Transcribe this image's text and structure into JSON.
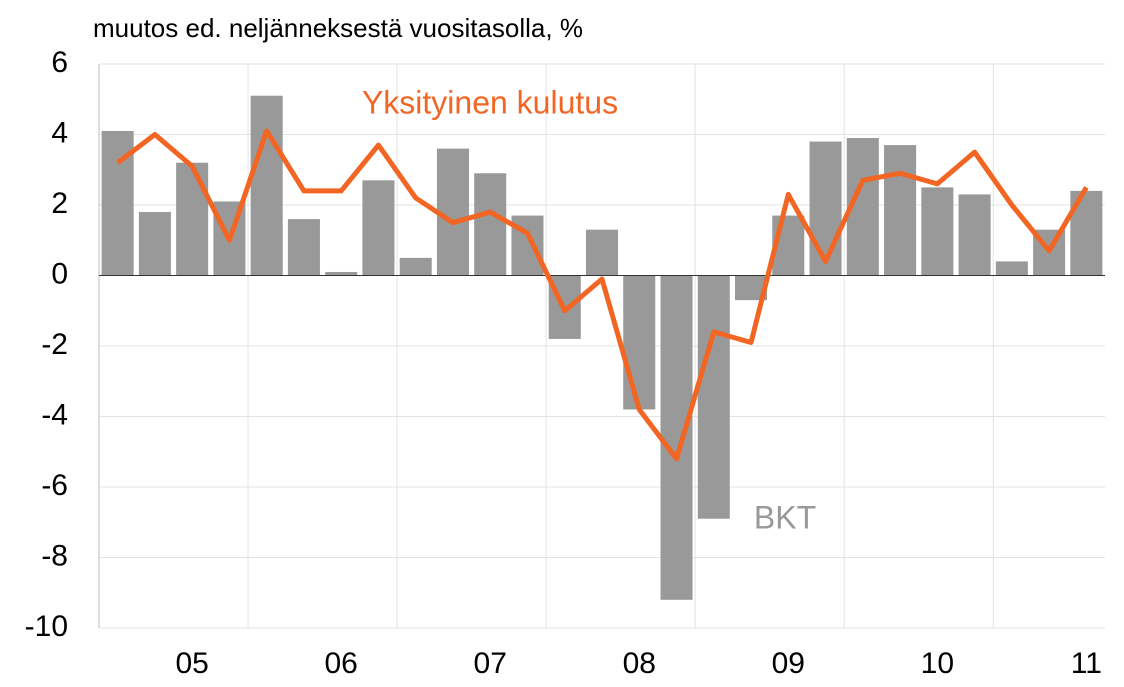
{
  "chart_data": {
    "type": "bar_line",
    "title": "muutos ed. neljänneksestä vuositasolla, %",
    "categories": [
      null,
      null,
      "05",
      null,
      null,
      null,
      "06",
      null,
      null,
      null,
      "07",
      null,
      null,
      null,
      "08",
      null,
      null,
      null,
      "09",
      null,
      null,
      null,
      "10",
      null,
      null,
      null,
      "11"
    ],
    "series": [
      {
        "name": "BKT",
        "type": "bar",
        "color": "#999999",
        "values": [
          4.1,
          1.8,
          3.2,
          2.1,
          5.1,
          1.6,
          0.1,
          2.7,
          0.5,
          3.6,
          2.9,
          1.7,
          -1.8,
          1.3,
          -3.8,
          -9.2,
          -6.9,
          -0.7,
          1.7,
          3.8,
          3.9,
          3.7,
          2.5,
          2.3,
          0.4,
          1.3,
          2.4
        ]
      },
      {
        "name": "Yksityinen kulutus",
        "type": "line",
        "color": "#f26522",
        "values": [
          3.2,
          4.0,
          3.1,
          1.0,
          4.1,
          2.4,
          2.4,
          3.7,
          2.2,
          1.5,
          1.8,
          1.2,
          -1.0,
          -0.1,
          -3.8,
          -5.2,
          -1.6,
          -1.9,
          2.3,
          0.4,
          2.7,
          2.9,
          2.6,
          3.5,
          2.0,
          0.7,
          2.5
        ]
      }
    ],
    "ylim": [
      -10,
      6
    ],
    "yticks": [
      -10,
      -8,
      -6,
      -4,
      -2,
      0,
      2,
      4,
      6
    ],
    "grid": true
  }
}
